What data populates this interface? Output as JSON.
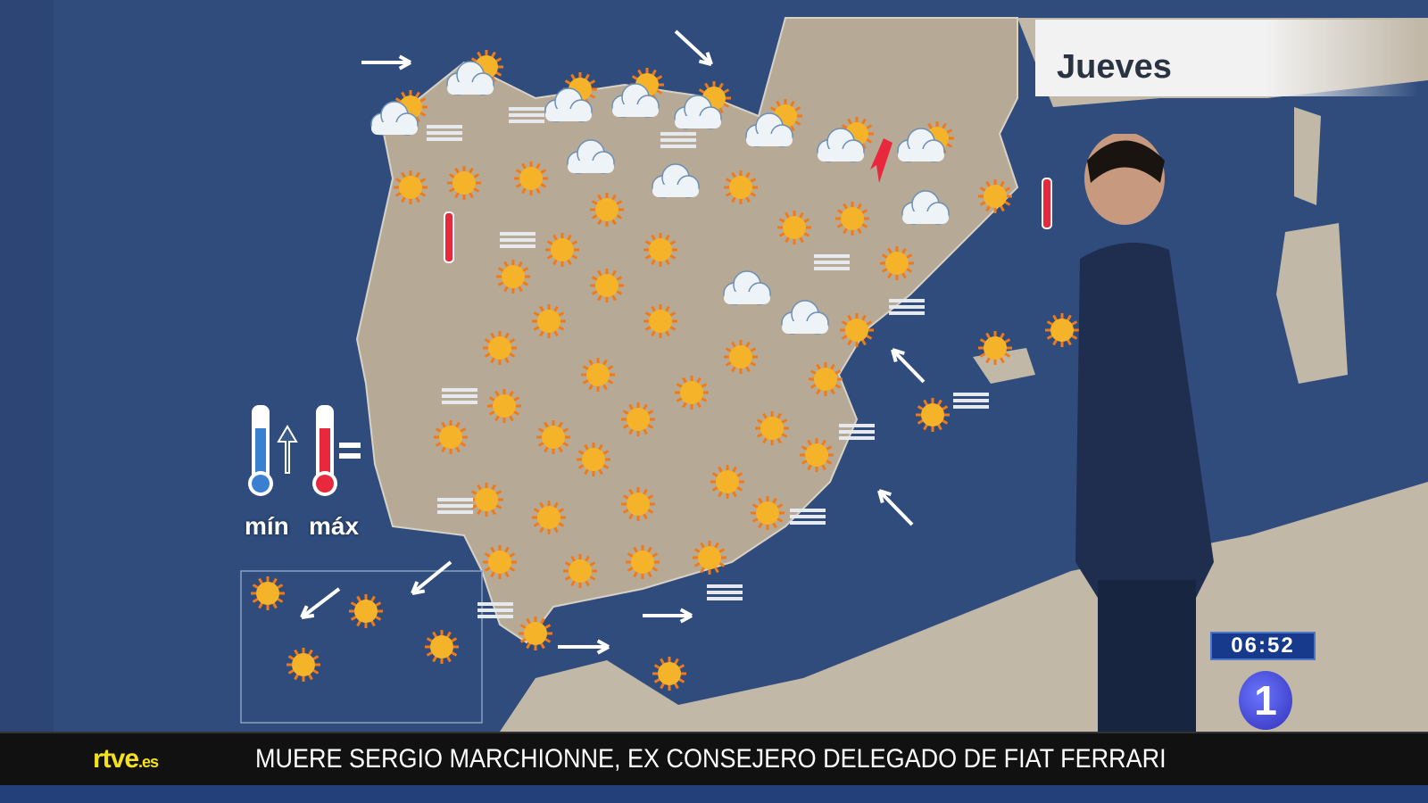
{
  "broadcast": {
    "channel_logo": "1",
    "clock": "06:52",
    "website_logo": "rtve",
    "website_logo_suffix": ".es",
    "ticker_headline": "MUERE SERGIO MARCHIONNE, EX CONSEJERO DELEGADO DE FIAT FERRARI"
  },
  "map": {
    "day_label": "Jueves",
    "legend": {
      "min_label": "mín",
      "max_label": "máx",
      "min_trend": "arrow-up-icon",
      "max_trend": "equal-icon"
    },
    "colors": {
      "sea": "#2d4a7a",
      "land": "#b9ad9a",
      "sun": "#f5a623",
      "min_thermo": "#3a7fd0",
      "max_thermo": "#e8283c"
    }
  }
}
